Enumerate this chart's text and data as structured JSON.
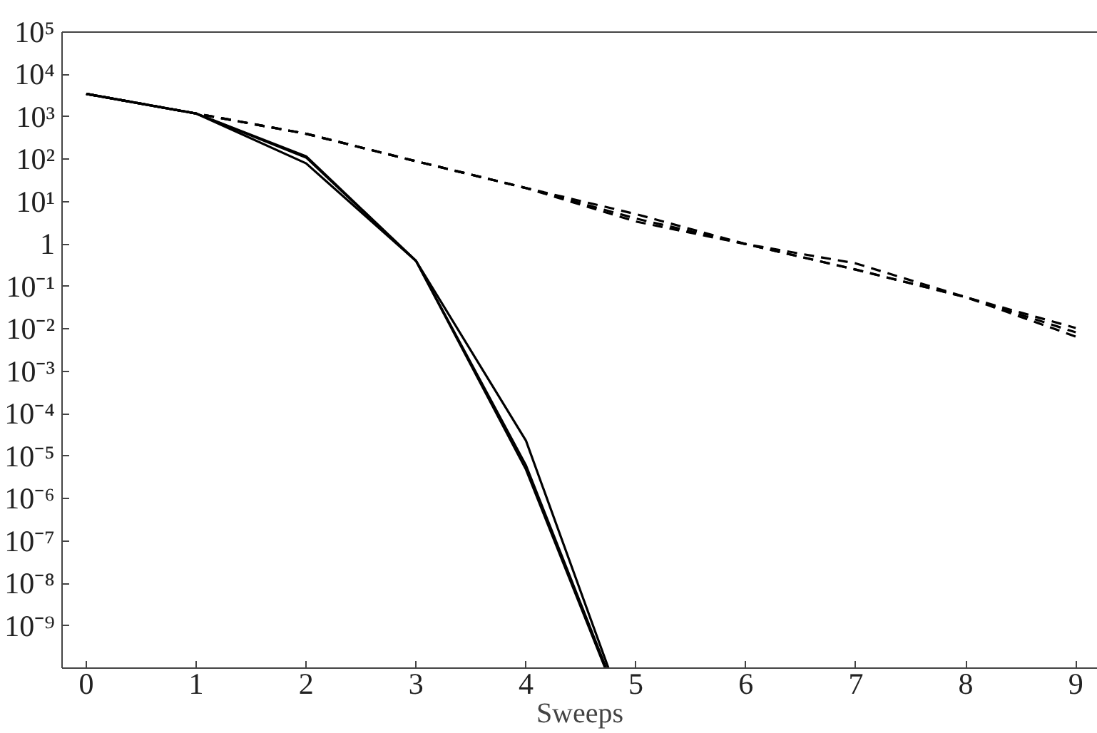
{
  "chart_data": {
    "type": "line",
    "xlabel": "Sweeps",
    "log": "y",
    "grid": false,
    "marker": "none",
    "xlim": [
      -0.22,
      9.2
    ],
    "xticks": [
      0,
      1,
      2,
      3,
      4,
      5,
      6,
      7,
      8,
      9
    ],
    "ylim": [
      1e-10,
      100000
    ],
    "yticks": [
      {
        "value": 1e-09,
        "label": "10⁻⁹"
      },
      {
        "value": 1e-08,
        "label": "10⁻⁸"
      },
      {
        "value": 1e-07,
        "label": "10⁻⁷"
      },
      {
        "value": 1e-06,
        "label": "10⁻⁶"
      },
      {
        "value": 1e-05,
        "label": "10⁻⁵"
      },
      {
        "value": 0.0001,
        "label": "10⁻⁴"
      },
      {
        "value": 0.001,
        "label": "10⁻³"
      },
      {
        "value": 0.01,
        "label": "10⁻²"
      },
      {
        "value": 0.1,
        "label": "10⁻¹"
      },
      1,
      {
        "value": 10,
        "label": "10¹"
      },
      {
        "value": 100,
        "label": "10²"
      },
      {
        "value": 1000,
        "label": "10³"
      },
      {
        "value": 10000,
        "label": "10⁴"
      },
      {
        "value": 100000,
        "label": "10⁵"
      }
    ],
    "series": [
      {
        "color": "#000000",
        "line_style": "solid",
        "x": [
          0,
          1,
          2,
          3,
          4,
          4.75
        ],
        "values": [
          3500,
          1200,
          80,
          0.4,
          2.3e-05,
          1e-10
        ]
      },
      {
        "color": "#000000",
        "line_style": "solid",
        "x": [
          0,
          1,
          2,
          3,
          4,
          4.73
        ],
        "values": [
          3500,
          1200,
          118,
          0.4,
          6e-06,
          1e-10
        ]
      },
      {
        "color": "#000000",
        "line_style": "solid",
        "x": [
          0,
          1,
          2,
          3,
          4,
          4.72
        ],
        "values": [
          3500,
          1200,
          110,
          0.4,
          4.8e-06,
          1e-10
        ]
      },
      {
        "color": "#000000",
        "line_style": "dashed",
        "x": [
          0,
          1,
          2,
          3,
          4,
          5,
          6,
          7,
          8,
          9
        ],
        "values": [
          3500,
          1200,
          400,
          90,
          21,
          5.1,
          1.0,
          0.35,
          0.056,
          0.0105
        ]
      },
      {
        "color": "#000000",
        "line_style": "dashed",
        "x": [
          0,
          1,
          2,
          3,
          4,
          5,
          6,
          7,
          8,
          9
        ],
        "values": [
          3500,
          1200,
          400,
          90,
          21,
          4,
          1.0,
          0.25,
          0.056,
          0.0083
        ]
      },
      {
        "color": "#000000",
        "line_style": "dashed",
        "x": [
          0,
          1,
          2,
          3,
          4,
          5,
          6,
          7,
          8,
          9
        ],
        "values": [
          3500,
          1200,
          400,
          90,
          21,
          3.4,
          1.0,
          0.25,
          0.056,
          0.0066
        ]
      }
    ]
  }
}
